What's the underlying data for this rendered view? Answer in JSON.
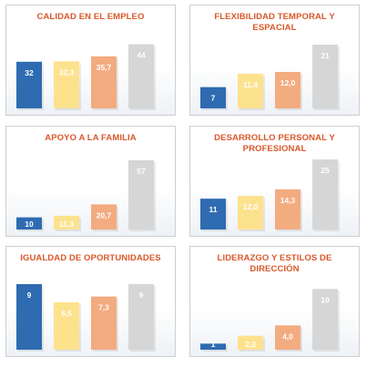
{
  "colors": [
    "#2e6bb1",
    "#fde28e",
    "#f3ab80",
    "#d6d6d6"
  ],
  "chart_data": [
    {
      "type": "bar",
      "title": "CALIDAD EN EL EMPLEO",
      "values": [
        32,
        32.3,
        35.7,
        44
      ],
      "labels": [
        "32",
        "32,3",
        "35,7",
        "44"
      ],
      "ylim": [
        0,
        50
      ]
    },
    {
      "type": "bar",
      "title": "FLEXIBILIDAD TEMPORAL Y ESPACIAL",
      "values": [
        7,
        11.4,
        12.0,
        21
      ],
      "labels": [
        "7",
        "11,4",
        "12,0",
        "21"
      ],
      "ylim": [
        0,
        24
      ]
    },
    {
      "type": "bar",
      "title": "APOYO A LA FAMILIA",
      "values": [
        10,
        11.3,
        20.7,
        57
      ],
      "labels": [
        "10",
        "11,3",
        "20,7",
        "57"
      ],
      "ylim": [
        0,
        60
      ]
    },
    {
      "type": "bar",
      "title": "DESARROLLO PERSONAL Y PROFESIONAL",
      "values": [
        11,
        12.0,
        14.3,
        25
      ],
      "labels": [
        "11",
        "12,0",
        "14,3",
        "25"
      ],
      "ylim": [
        0,
        26
      ]
    },
    {
      "type": "bar",
      "title": "IGUALDAD DE OPORTUNIDADES",
      "values": [
        9,
        6.5,
        7.3,
        9
      ],
      "labels": [
        "9",
        "6,5",
        "7,3",
        "9"
      ],
      "ylim": [
        0,
        10
      ]
    },
    {
      "type": "bar",
      "title": "LIDERAZGO Y ESTILOS DE DIRECCIÓN",
      "values": [
        1,
        2.3,
        4.0,
        10
      ],
      "labels": [
        "1",
        "2,3",
        "4,0",
        "10"
      ],
      "ylim": [
        0,
        12
      ]
    }
  ]
}
